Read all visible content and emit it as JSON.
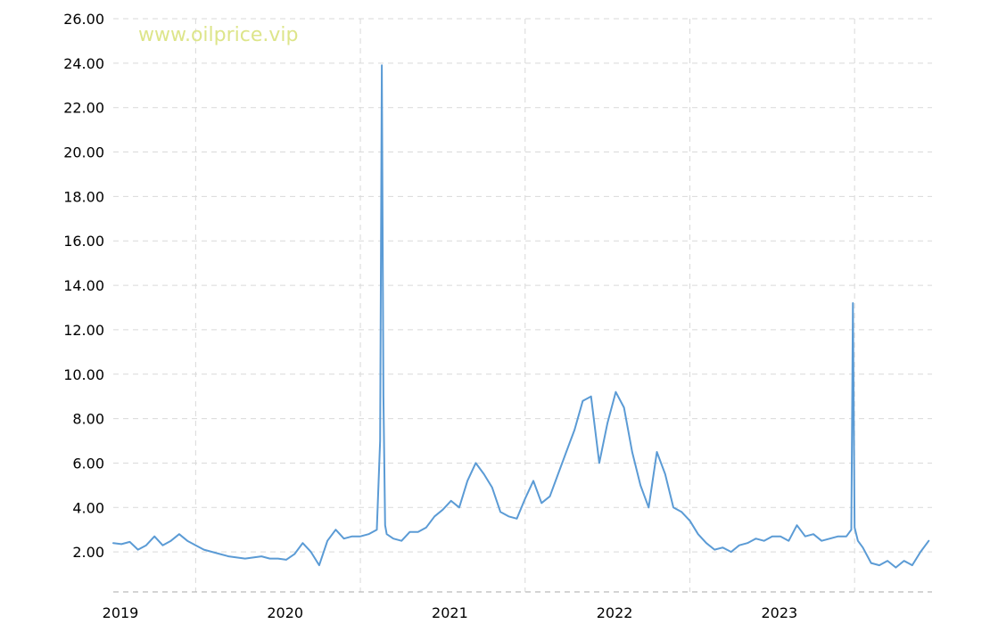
{
  "chart_data": {
    "type": "line",
    "title": "",
    "xlabel": "",
    "ylabel": "",
    "watermark": "www.oilprice.vip",
    "xlim": [
      2019.0,
      2023.97
    ],
    "ylim": [
      0.2,
      26.0
    ],
    "x_ticks": [
      {
        "label": "2019",
        "value": 2019.0
      },
      {
        "label": "2020",
        "value": 2020.0
      },
      {
        "label": "2021",
        "value": 2021.0
      },
      {
        "label": "2022",
        "value": 2022.0
      },
      {
        "label": "2023",
        "value": 2023.0
      }
    ],
    "x_gridlines": [
      2019.5,
      2020.5,
      2021.5,
      2022.5,
      2023.5
    ],
    "y_ticks": [
      "26.00",
      "24.00",
      "22.00",
      "20.00",
      "18.00",
      "16.00",
      "14.00",
      "12.00",
      "10.00",
      "8.00",
      "6.00",
      "4.00",
      "2.00"
    ],
    "grid": true,
    "legend": "none",
    "colors": {
      "line": "#5b9bd5",
      "grid": "#d9d9d9",
      "axis": "#aaaaaa",
      "watermark": "#dde58a"
    },
    "series": [
      {
        "x": [
          2019.0,
          2019.05,
          2019.1,
          2019.15,
          2019.2,
          2019.25,
          2019.3,
          2019.35,
          2019.4,
          2019.45,
          2019.5,
          2019.55,
          2019.6,
          2019.65,
          2019.7,
          2019.75,
          2019.8,
          2019.85,
          2019.9,
          2019.95,
          2020.0,
          2020.05,
          2020.1,
          2020.15,
          2020.2,
          2020.25,
          2020.3,
          2020.35,
          2020.4,
          2020.45,
          2020.5,
          2020.55,
          2020.6,
          2020.62,
          2020.63,
          2020.64,
          2020.65,
          2020.66,
          2020.7,
          2020.75,
          2020.8,
          2020.85,
          2020.9,
          2020.95,
          2021.0,
          2021.05,
          2021.1,
          2021.15,
          2021.2,
          2021.25,
          2021.3,
          2021.35,
          2021.4,
          2021.45,
          2021.5,
          2021.55,
          2021.6,
          2021.65,
          2021.7,
          2021.75,
          2021.8,
          2021.85,
          2021.9,
          2021.95,
          2022.0,
          2022.05,
          2022.1,
          2022.15,
          2022.2,
          2022.25,
          2022.3,
          2022.35,
          2022.4,
          2022.45,
          2022.5,
          2022.55,
          2022.6,
          2022.65,
          2022.7,
          2022.75,
          2022.8,
          2022.85,
          2022.9,
          2022.95,
          2023.0,
          2023.05,
          2023.1,
          2023.15,
          2023.2,
          2023.25,
          2023.3,
          2023.35,
          2023.4,
          2023.45,
          2023.48,
          2023.49,
          2023.5,
          2023.52,
          2023.55,
          2023.6,
          2023.65,
          2023.7,
          2023.75,
          2023.8,
          2023.85,
          2023.9,
          2023.95
        ],
        "y": [
          2.4,
          2.35,
          2.45,
          2.1,
          2.3,
          2.7,
          2.3,
          2.5,
          2.8,
          2.5,
          2.3,
          2.1,
          2.0,
          1.9,
          1.8,
          1.75,
          1.7,
          1.75,
          1.8,
          1.7,
          1.7,
          1.65,
          1.9,
          2.4,
          2.0,
          1.4,
          2.5,
          3.0,
          2.6,
          2.7,
          2.7,
          2.8,
          3.0,
          7.0,
          23.9,
          9.0,
          3.2,
          2.8,
          2.6,
          2.5,
          2.9,
          2.9,
          3.1,
          3.6,
          3.9,
          4.3,
          4.0,
          5.2,
          6.0,
          5.5,
          4.9,
          3.8,
          3.6,
          3.5,
          4.4,
          5.2,
          4.2,
          4.5,
          5.5,
          6.5,
          7.5,
          8.8,
          9.0,
          6.0,
          7.8,
          9.2,
          8.5,
          6.5,
          5.0,
          4.0,
          6.5,
          5.5,
          4.0,
          3.8,
          3.4,
          2.8,
          2.4,
          2.1,
          2.2,
          2.0,
          2.3,
          2.4,
          2.6,
          2.5,
          2.7,
          2.7,
          2.5,
          3.2,
          2.7,
          2.8,
          2.5,
          2.6,
          2.7,
          2.7,
          3.0,
          13.2,
          3.1,
          2.5,
          2.2,
          1.5,
          1.4,
          1.6,
          1.3,
          1.6,
          1.4,
          2.0,
          2.5
        ]
      }
    ]
  }
}
